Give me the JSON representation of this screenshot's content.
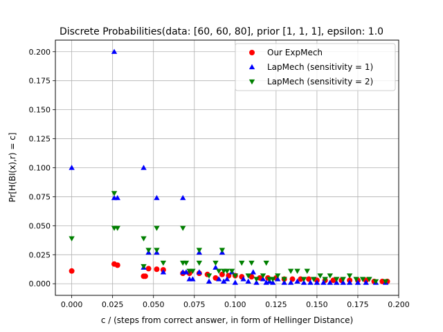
{
  "chart_data": {
    "type": "scatter",
    "title": "Discrete Probabilities(data: [60, 60, 80], prior [1, 1, 1], epsilon: 1.0",
    "xlabel": "c / (steps from correct answer, in form of Hellinger Distance)",
    "ylabel": "Pr[H(BI(x),r) = c]",
    "xlim": [
      -0.01,
      0.2
    ],
    "ylim": [
      -0.01,
      0.21
    ],
    "xticks": [
      "0.000",
      "0.025",
      "0.050",
      "0.075",
      "0.100",
      "0.125",
      "0.150",
      "0.175",
      "0.200"
    ],
    "xtick_values": [
      0,
      0.025,
      0.05,
      0.075,
      0.1,
      0.125,
      0.15,
      0.175,
      0.2
    ],
    "yticks": [
      "0.000",
      "0.025",
      "0.050",
      "0.075",
      "0.100",
      "0.125",
      "0.150",
      "0.175",
      "0.200"
    ],
    "ytick_values": [
      0,
      0.025,
      0.05,
      0.075,
      0.1,
      0.125,
      0.15,
      0.175,
      0.2
    ],
    "grid": true,
    "legend_position": "top-right",
    "series": [
      {
        "name": "Our ExpMech",
        "marker": "circle",
        "color": "#ff0000",
        "points": [
          [
            0.0,
            0.011
          ],
          [
            0.026,
            0.017
          ],
          [
            0.028,
            0.016
          ],
          [
            0.044,
            0.0065
          ],
          [
            0.045,
            0.0065
          ],
          [
            0.047,
            0.013
          ],
          [
            0.052,
            0.0125
          ],
          [
            0.056,
            0.012
          ],
          [
            0.068,
            0.009
          ],
          [
            0.072,
            0.009
          ],
          [
            0.078,
            0.009
          ],
          [
            0.083,
            0.008
          ],
          [
            0.088,
            0.005
          ],
          [
            0.092,
            0.008
          ],
          [
            0.096,
            0.007
          ],
          [
            0.1,
            0.007
          ],
          [
            0.104,
            0.006
          ],
          [
            0.11,
            0.006
          ],
          [
            0.115,
            0.005
          ],
          [
            0.12,
            0.005
          ],
          [
            0.125,
            0.005
          ],
          [
            0.13,
            0.004
          ],
          [
            0.135,
            0.004
          ],
          [
            0.14,
            0.004
          ],
          [
            0.145,
            0.004
          ],
          [
            0.15,
            0.003
          ],
          [
            0.155,
            0.003
          ],
          [
            0.16,
            0.003
          ],
          [
            0.165,
            0.003
          ],
          [
            0.17,
            0.003
          ],
          [
            0.175,
            0.003
          ],
          [
            0.18,
            0.003
          ],
          [
            0.185,
            0.002
          ],
          [
            0.19,
            0.002
          ],
          [
            0.193,
            0.002
          ]
        ]
      },
      {
        "name": "LapMech (sensitivity = 1)",
        "marker": "triangle-up",
        "color": "#0000ff",
        "points": [
          [
            0.0,
            0.1
          ],
          [
            0.026,
            0.2
          ],
          [
            0.026,
            0.074
          ],
          [
            0.028,
            0.074
          ],
          [
            0.044,
            0.1
          ],
          [
            0.044,
            0.014
          ],
          [
            0.047,
            0.027
          ],
          [
            0.052,
            0.074
          ],
          [
            0.052,
            0.027
          ],
          [
            0.056,
            0.01
          ],
          [
            0.068,
            0.074
          ],
          [
            0.068,
            0.01
          ],
          [
            0.07,
            0.01
          ],
          [
            0.072,
            0.004
          ],
          [
            0.074,
            0.004
          ],
          [
            0.078,
            0.027
          ],
          [
            0.078,
            0.01
          ],
          [
            0.084,
            0.002
          ],
          [
            0.088,
            0.014
          ],
          [
            0.09,
            0.004
          ],
          [
            0.092,
            0.027
          ],
          [
            0.093,
            0.002
          ],
          [
            0.095,
            0.004
          ],
          [
            0.098,
            0.01
          ],
          [
            0.1,
            0.001
          ],
          [
            0.105,
            0.004
          ],
          [
            0.108,
            0.002
          ],
          [
            0.111,
            0.01
          ],
          [
            0.113,
            0.001
          ],
          [
            0.117,
            0.004
          ],
          [
            0.119,
            0.001
          ],
          [
            0.121,
            0.002
          ],
          [
            0.123,
            0.001
          ],
          [
            0.126,
            0.004
          ],
          [
            0.13,
            0.001
          ],
          [
            0.134,
            0.001
          ],
          [
            0.138,
            0.002
          ],
          [
            0.142,
            0.001
          ],
          [
            0.146,
            0.001
          ],
          [
            0.15,
            0.001
          ],
          [
            0.154,
            0.001
          ],
          [
            0.158,
            0.001
          ],
          [
            0.162,
            0.001
          ],
          [
            0.166,
            0.001
          ],
          [
            0.17,
            0.001
          ],
          [
            0.175,
            0.001
          ],
          [
            0.18,
            0.001
          ],
          [
            0.186,
            0.001
          ],
          [
            0.192,
            0.001
          ]
        ]
      },
      {
        "name": "LapMech (sensitivity = 2)",
        "marker": "triangle-down",
        "color": "#008000",
        "points": [
          [
            0.0,
            0.039
          ],
          [
            0.026,
            0.078
          ],
          [
            0.026,
            0.048
          ],
          [
            0.028,
            0.048
          ],
          [
            0.044,
            0.039
          ],
          [
            0.044,
            0.015
          ],
          [
            0.047,
            0.029
          ],
          [
            0.052,
            0.048
          ],
          [
            0.052,
            0.029
          ],
          [
            0.056,
            0.018
          ],
          [
            0.068,
            0.048
          ],
          [
            0.068,
            0.018
          ],
          [
            0.07,
            0.018
          ],
          [
            0.072,
            0.011
          ],
          [
            0.074,
            0.011
          ],
          [
            0.078,
            0.029
          ],
          [
            0.078,
            0.018
          ],
          [
            0.084,
            0.007
          ],
          [
            0.088,
            0.018
          ],
          [
            0.09,
            0.011
          ],
          [
            0.092,
            0.029
          ],
          [
            0.093,
            0.011
          ],
          [
            0.095,
            0.011
          ],
          [
            0.098,
            0.011
          ],
          [
            0.1,
            0.007
          ],
          [
            0.104,
            0.018
          ],
          [
            0.108,
            0.007
          ],
          [
            0.11,
            0.018
          ],
          [
            0.113,
            0.004
          ],
          [
            0.117,
            0.007
          ],
          [
            0.119,
            0.018
          ],
          [
            0.121,
            0.004
          ],
          [
            0.123,
            0.004
          ],
          [
            0.126,
            0.007
          ],
          [
            0.13,
            0.004
          ],
          [
            0.134,
            0.011
          ],
          [
            0.138,
            0.011
          ],
          [
            0.142,
            0.004
          ],
          [
            0.144,
            0.011
          ],
          [
            0.148,
            0.004
          ],
          [
            0.152,
            0.007
          ],
          [
            0.155,
            0.004
          ],
          [
            0.158,
            0.007
          ],
          [
            0.162,
            0.004
          ],
          [
            0.166,
            0.004
          ],
          [
            0.17,
            0.007
          ],
          [
            0.174,
            0.004
          ],
          [
            0.178,
            0.004
          ],
          [
            0.182,
            0.004
          ],
          [
            0.186,
            0.002
          ],
          [
            0.192,
            0.002
          ]
        ]
      }
    ]
  }
}
